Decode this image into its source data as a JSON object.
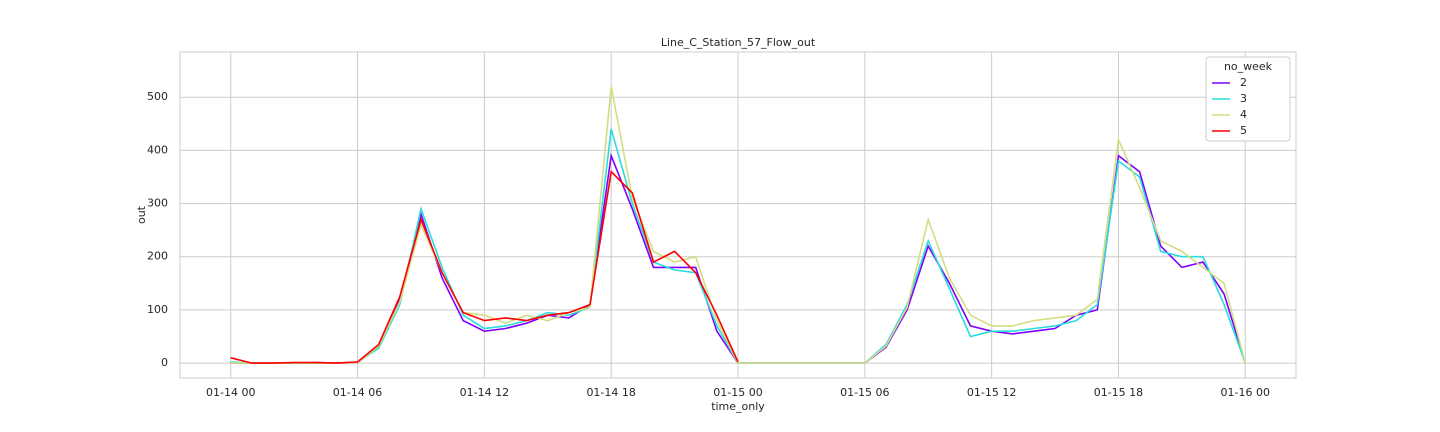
{
  "chart_data": {
    "type": "line",
    "title": "Line_C_Station_57_Flow_out",
    "xlabel": "time_only",
    "ylabel": "out",
    "x": [
      "01-14 00",
      "01-14 01",
      "01-14 02",
      "01-14 03",
      "01-14 04",
      "01-14 05",
      "01-14 06",
      "01-14 07",
      "01-14 08",
      "01-14 09",
      "01-14 10",
      "01-14 11",
      "01-14 12",
      "01-14 13",
      "01-14 14",
      "01-14 15",
      "01-14 16",
      "01-14 17",
      "01-14 18",
      "01-14 19",
      "01-14 20",
      "01-14 21",
      "01-14 22",
      "01-14 23",
      "01-15 00",
      "01-15 01",
      "01-15 02",
      "01-15 03",
      "01-15 04",
      "01-15 05",
      "01-15 06",
      "01-15 07",
      "01-15 08",
      "01-15 09",
      "01-15 10",
      "01-15 11",
      "01-15 12",
      "01-15 13",
      "01-15 14",
      "01-15 15",
      "01-15 16",
      "01-15 17",
      "01-15 18",
      "01-15 19",
      "01-15 20",
      "01-15 21",
      "01-15 22",
      "01-15 23",
      "01-16 00"
    ],
    "xticks": [
      "01-14 00",
      "01-14 06",
      "01-14 12",
      "01-14 18",
      "01-15 00",
      "01-15 06",
      "01-15 12",
      "01-15 18",
      "01-16 00"
    ],
    "ylim": [
      -28,
      585
    ],
    "yticks": [
      0,
      100,
      200,
      300,
      400,
      500
    ],
    "grid": true,
    "legend": "upper right",
    "legend_title": "no_week",
    "series": [
      {
        "name": "2",
        "color": "#8000ff",
        "values": [
          0,
          0,
          0,
          0,
          1,
          0,
          1,
          30,
          120,
          280,
          160,
          80,
          60,
          65,
          75,
          90,
          85,
          110,
          390,
          290,
          180,
          180,
          180,
          60,
          0,
          0,
          0,
          0,
          0,
          0,
          0,
          30,
          100,
          220,
          150,
          70,
          60,
          55,
          60,
          65,
          90,
          100,
          390,
          360,
          220,
          180,
          190,
          130,
          0
        ]
      },
      {
        "name": "3",
        "color": "#2adddd",
        "values": [
          2,
          0,
          0,
          0,
          0,
          0,
          2,
          28,
          110,
          290,
          180,
          90,
          65,
          70,
          80,
          95,
          90,
          105,
          440,
          300,
          190,
          175,
          170,
          70,
          0,
          0,
          0,
          0,
          0,
          0,
          0,
          35,
          110,
          230,
          140,
          50,
          60,
          60,
          65,
          70,
          80,
          110,
          380,
          350,
          210,
          200,
          200,
          110,
          0
        ]
      },
      {
        "name": "4",
        "color": "#d4dd80",
        "values": [
          0,
          0,
          0,
          0,
          0,
          0,
          1,
          32,
          115,
          260,
          170,
          95,
          90,
          75,
          90,
          80,
          95,
          105,
          520,
          310,
          210,
          190,
          200,
          80,
          0,
          0,
          0,
          0,
          0,
          0,
          0,
          32,
          105,
          270,
          160,
          90,
          70,
          70,
          80,
          85,
          90,
          120,
          420,
          330,
          230,
          210,
          180,
          150,
          0
        ]
      },
      {
        "name": "5",
        "color": "#ff0000",
        "values": [
          10,
          0,
          0,
          1,
          1,
          0,
          2,
          35,
          125,
          270,
          170,
          95,
          80,
          85,
          80,
          90,
          95,
          110,
          360,
          320,
          190,
          210,
          170,
          90,
          2,
          null,
          null,
          null,
          null,
          null,
          null,
          null,
          null,
          null,
          null,
          null,
          null,
          null,
          null,
          null,
          null,
          null,
          null,
          null,
          null,
          null,
          null,
          null,
          null
        ]
      }
    ]
  }
}
